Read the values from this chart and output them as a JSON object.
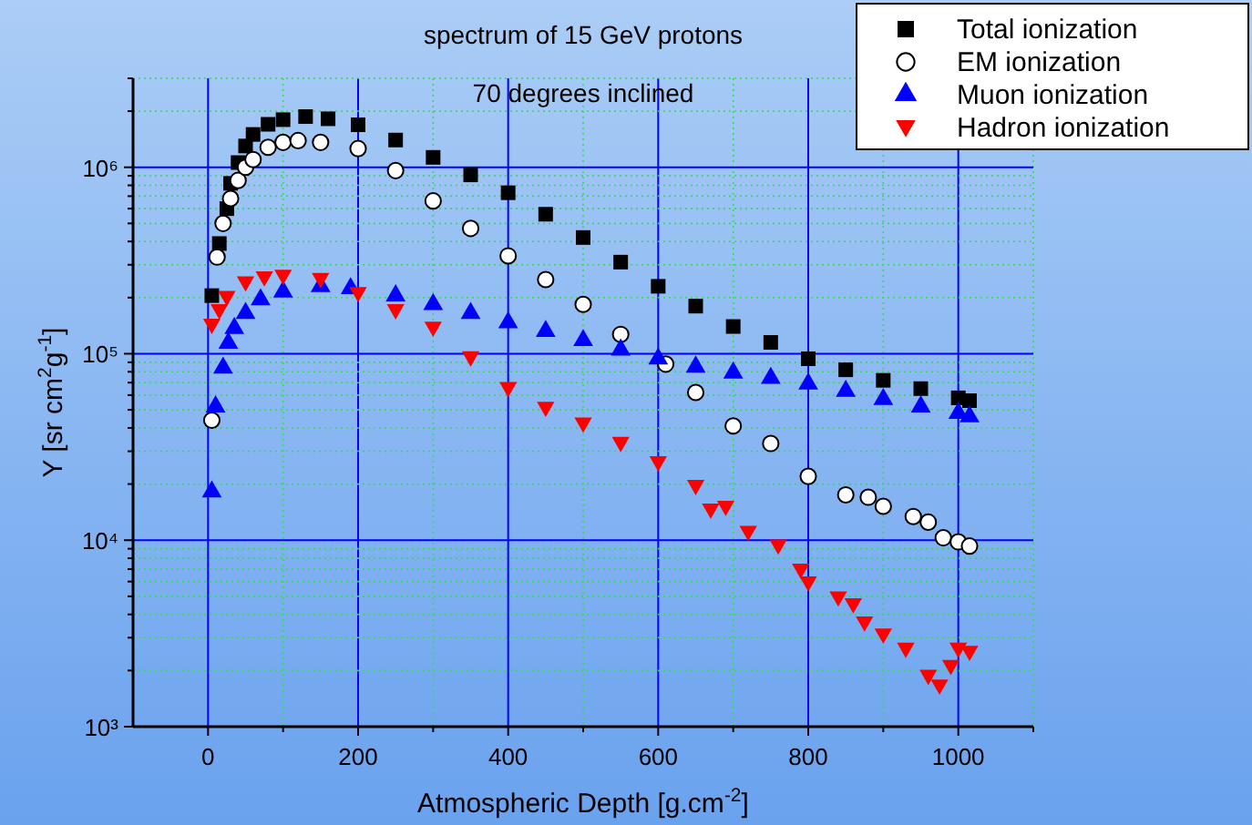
{
  "chart_data": {
    "type": "scatter",
    "title": "spectrum of 15 GeV protons",
    "subtitle": "70 degrees inclined",
    "xlabel": "Atmospheric Depth [g.cm$^{-2}$]",
    "ylabel": "Y [sr cm$^{2}$g$^{-1}$]",
    "log": "y",
    "grid": true,
    "legend": "top right",
    "xlim": [
      -100,
      1100
    ],
    "xticks": [
      0,
      {
        "value": 100,
        "label": null
      },
      200,
      {
        "value": 300,
        "label": null
      },
      400,
      {
        "value": 500,
        "label": null
      },
      600,
      {
        "value": 700,
        "label": null
      },
      800,
      {
        "value": 900,
        "label": null
      },
      1000,
      {
        "value": 1100,
        "label": null
      }
    ],
    "ylim": [
      1000,
      3000000
    ],
    "yticks": [
      {
        "value": 1000,
        "label": "10³"
      },
      {
        "value": 2000,
        "label": null
      },
      {
        "value": 3000,
        "label": null
      },
      {
        "value": 4000,
        "label": null
      },
      {
        "value": 5000,
        "label": null
      },
      {
        "value": 6000,
        "label": null
      },
      {
        "value": 7000,
        "label": null
      },
      {
        "value": 8000,
        "label": null
      },
      {
        "value": 9000,
        "label": null
      },
      {
        "value": 10000,
        "label": "10⁴"
      },
      {
        "value": 20000,
        "label": null
      },
      {
        "value": 30000,
        "label": null
      },
      {
        "value": 40000,
        "label": null
      },
      {
        "value": 50000,
        "label": null
      },
      {
        "value": 60000,
        "label": null
      },
      {
        "value": 70000,
        "label": null
      },
      {
        "value": 80000,
        "label": null
      },
      {
        "value": 90000,
        "label": null
      },
      {
        "value": 100000,
        "label": "10⁵"
      },
      {
        "value": 200000,
        "label": null
      },
      {
        "value": 300000,
        "label": null
      },
      {
        "value": 400000,
        "label": null
      },
      {
        "value": 500000,
        "label": null
      },
      {
        "value": 600000,
        "label": null
      },
      {
        "value": 700000,
        "label": null
      },
      {
        "value": 800000,
        "label": null
      },
      {
        "value": 900000,
        "label": null
      },
      {
        "value": 1000000,
        "label": "10⁶"
      },
      {
        "value": 2000000,
        "label": null
      },
      {
        "value": 3000000,
        "label": null
      }
    ],
    "series": [
      {
        "name": "Total ionization",
        "color": "#000000",
        "marker": "square",
        "x": [
          5,
          15,
          25,
          30,
          40,
          50,
          60,
          80,
          100,
          130,
          160,
          200,
          250,
          300,
          350,
          400,
          450,
          500,
          550,
          600,
          650,
          700,
          750,
          800,
          850,
          900,
          950,
          1000,
          1015
        ],
        "values": [
          205000,
          390000,
          600000,
          820000,
          1060000,
          1300000,
          1500000,
          1700000,
          1800000,
          1870000,
          1820000,
          1690000,
          1400000,
          1130000,
          910000,
          730000,
          560000,
          420000,
          310000,
          230000,
          180000,
          140000,
          115000,
          94000,
          82000,
          72000,
          65000,
          58000,
          56000
        ]
      },
      {
        "name": "EM ionization",
        "color": "#ffffff",
        "marker": "circle",
        "x": [
          5,
          12,
          20,
          30,
          40,
          50,
          60,
          80,
          100,
          120,
          150,
          200,
          250,
          300,
          350,
          400,
          450,
          500,
          550,
          610,
          650,
          700,
          750,
          800,
          850,
          880,
          900,
          940,
          960,
          980,
          1000,
          1015
        ],
        "values": [
          44000,
          330000,
          500000,
          680000,
          850000,
          1000000,
          1100000,
          1280000,
          1360000,
          1390000,
          1360000,
          1260000,
          960000,
          660000,
          470000,
          335000,
          250000,
          184000,
          127000,
          88000,
          62000,
          41000,
          33000,
          22000,
          17500,
          17000,
          15200,
          13400,
          12500,
          10300,
          9800,
          9300
        ]
      },
      {
        "name": "Muon ionization",
        "color": "#0000ff",
        "marker": "triangle",
        "x": [
          5,
          10,
          20,
          27,
          35,
          50,
          70,
          100,
          150,
          190,
          250,
          300,
          350,
          400,
          450,
          500,
          550,
          600,
          650,
          700,
          750,
          800,
          850,
          900,
          950,
          1000,
          1015
        ],
        "values": [
          18200,
          52000,
          84000,
          114000,
          137000,
          165000,
          195000,
          215000,
          230000,
          224000,
          205000,
          184000,
          165000,
          147000,
          132000,
          118000,
          105000,
          94000,
          85000,
          79000,
          74000,
          69000,
          63000,
          57000,
          52000,
          48000,
          46000
        ]
      },
      {
        "name": "Hadron ionization",
        "color": "#ff0000",
        "marker": "triangle-down",
        "x": [
          5,
          15,
          25,
          50,
          75,
          100,
          150,
          200,
          250,
          300,
          350,
          400,
          450,
          500,
          550,
          600,
          650,
          670,
          690,
          720,
          760,
          790,
          800,
          840,
          860,
          875,
          900,
          930,
          960,
          975,
          990,
          1000,
          1015
        ],
        "values": [
          142000,
          170000,
          200000,
          240000,
          255000,
          260000,
          250000,
          210000,
          170000,
          137000,
          95000,
          65000,
          51000,
          42000,
          33000,
          26000,
          19400,
          14500,
          15000,
          11000,
          9300,
          6900,
          5900,
          4900,
          4500,
          3600,
          3100,
          2600,
          1860,
          1650,
          2100,
          2600,
          2500
        ]
      }
    ]
  }
}
